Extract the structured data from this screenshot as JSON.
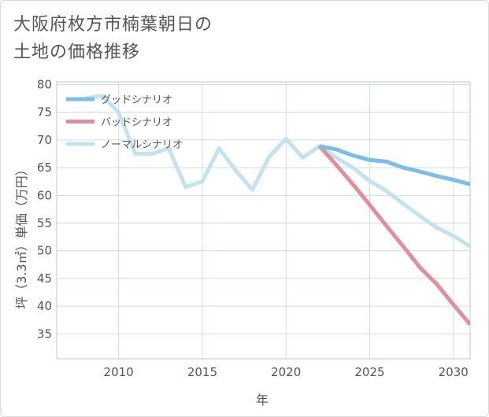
{
  "title_lines": [
    "大阪府枚方市楠葉朝日の",
    "土地の価格推移"
  ],
  "chart_data": {
    "type": "line",
    "title": "大阪府枚方市楠葉朝日の土地の価格推移",
    "xlabel": "年",
    "ylabel": "坪（3.3㎡）単価（万円）",
    "xlim": [
      2006.3,
      2031
    ],
    "ylim": [
      30.5,
      80.5
    ],
    "x_ticks": [
      2010,
      2015,
      2020,
      2025,
      2030
    ],
    "y_ticks": [
      35,
      40,
      45,
      50,
      55,
      60,
      65,
      70,
      75,
      80
    ],
    "grid": true,
    "legend_position": "top-left",
    "series": [
      {
        "name": "グッドシナリオ",
        "color": "#7abde8",
        "x": [
          2022,
          2023,
          2024,
          2025,
          2026,
          2027,
          2028,
          2029,
          2030,
          2031
        ],
        "values": [
          68.9,
          68.3,
          67.2,
          66.4,
          66.1,
          65.0,
          64.3,
          63.5,
          62.8,
          62.0
        ]
      },
      {
        "name": "バッドシナリオ",
        "color": "#e08e97",
        "x": [
          2022,
          2023,
          2024,
          2025,
          2026,
          2027,
          2028,
          2029,
          2030,
          2031
        ],
        "values": [
          68.9,
          65.5,
          62.0,
          58.3,
          54.5,
          50.8,
          47.0,
          44.0,
          40.3,
          36.7
        ]
      },
      {
        "name": "ノーマルシナリオ",
        "color": "#c4e1ef",
        "x": [
          2008,
          2009,
          2010,
          2011,
          2012,
          2013,
          2014,
          2015,
          2016,
          2017,
          2018,
          2019,
          2020,
          2021,
          2022,
          2023,
          2024,
          2025,
          2026,
          2027,
          2028,
          2029,
          2030,
          2031
        ],
        "values": [
          77.5,
          78.0,
          75.0,
          67.5,
          67.5,
          68.5,
          61.5,
          62.5,
          68.5,
          64.5,
          61.0,
          67.0,
          70.2,
          66.8,
          68.9,
          66.8,
          65.0,
          62.6,
          60.8,
          58.5,
          56.3,
          54.2,
          52.7,
          50.8
        ]
      }
    ]
  }
}
